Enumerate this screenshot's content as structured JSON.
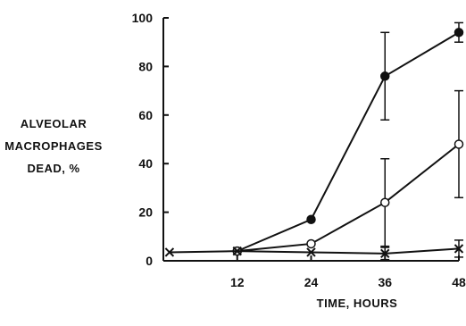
{
  "chart_data": {
    "type": "line",
    "title": "",
    "xlabel": "TIME, HOURS",
    "ylabel_lines": [
      "ALVEOLAR",
      "MACROPHAGES",
      "DEAD, %"
    ],
    "xlim": [
      0,
      48
    ],
    "ylim": [
      0,
      100
    ],
    "xticks": [
      12,
      24,
      36,
      48
    ],
    "yticks": [
      0,
      20,
      40,
      60,
      80,
      100
    ],
    "grid": false,
    "legend": "none",
    "series": [
      {
        "marker": "filled-circle",
        "color": "#111111",
        "points": [
          {
            "x": 12,
            "y": 4
          },
          {
            "x": 24,
            "y": 17
          },
          {
            "x": 36,
            "y": 76,
            "err": 18
          },
          {
            "x": 48,
            "y": 94,
            "err": 4
          }
        ]
      },
      {
        "marker": "open-circle",
        "color": "#111111",
        "points": [
          {
            "x": 12,
            "y": 4
          },
          {
            "x": 24,
            "y": 7
          },
          {
            "x": 36,
            "y": 24,
            "err": 18
          },
          {
            "x": 48,
            "y": 48,
            "err": 22
          }
        ]
      },
      {
        "marker": "x",
        "color": "#111111",
        "points": [
          {
            "x": 1,
            "y": 3.5
          },
          {
            "x": 12,
            "y": 4
          },
          {
            "x": 24,
            "y": 3.5
          },
          {
            "x": 36,
            "y": 3,
            "err": 2.5
          },
          {
            "x": 48,
            "y": 5,
            "err": 3.5
          }
        ]
      }
    ]
  }
}
